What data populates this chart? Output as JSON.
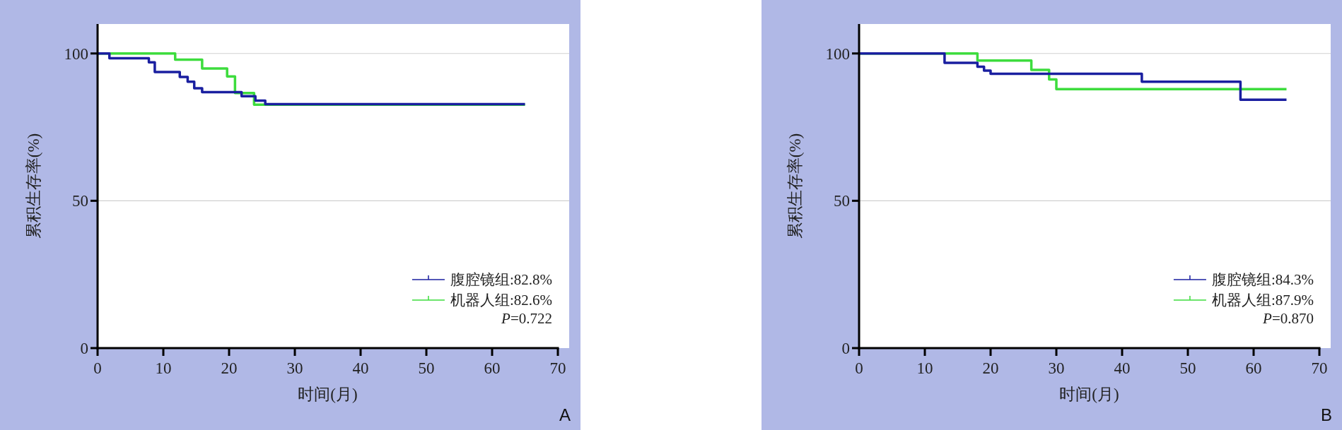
{
  "chart_data": [
    {
      "type": "step",
      "xlabel": "时间(月)",
      "ylabel": "累积生存率(%)",
      "xlim": [
        0,
        70
      ],
      "ylim": [
        0,
        110
      ],
      "xticks": [
        0,
        10,
        20,
        30,
        40,
        50,
        60,
        70
      ],
      "yticks": [
        0,
        50,
        100
      ],
      "grid": "y",
      "legend": "bottom right",
      "series": [
        {
          "name": "腹腔镜组:82.8%",
          "color": "#1a1fa0",
          "x": [
            0,
            1.8,
            7.8,
            8.7,
            12.5,
            13.7,
            14.7,
            15.9,
            21.9,
            24,
            25.5,
            65
          ],
          "values": [
            100,
            98.4,
            97,
            93.7,
            92,
            90.4,
            88.2,
            86.9,
            85.5,
            84,
            82.8,
            82.8
          ]
        },
        {
          "name": "机器人组:82.6%",
          "color": "#3ddc3d",
          "x": [
            0,
            11.8,
            15.9,
            19.7,
            20.9,
            23.8,
            65
          ],
          "values": [
            100,
            97.9,
            94.9,
            92.2,
            86.6,
            82.6,
            82.6
          ]
        }
      ],
      "annotations": [
        "P=0.722",
        "A"
      ]
    },
    {
      "type": "step",
      "xlabel": "时间(月)",
      "ylabel": "累积生存率(%)",
      "xlim": [
        0,
        70
      ],
      "ylim": [
        0,
        110
      ],
      "xticks": [
        0,
        10,
        20,
        30,
        40,
        50,
        60,
        70
      ],
      "yticks": [
        0,
        50,
        100
      ],
      "grid": "y",
      "legend": "bottom right",
      "series": [
        {
          "name": "腹腔镜组:84.3%",
          "color": "#1a1fa0",
          "x": [
            0,
            13,
            18,
            19,
            20,
            43,
            58,
            65
          ],
          "values": [
            100,
            96.8,
            95.5,
            94.2,
            93.1,
            90.4,
            84.3,
            84.3
          ]
        },
        {
          "name": "机器人组:87.9%",
          "color": "#3ddc3d",
          "x": [
            0,
            18,
            26.2,
            28.9,
            30,
            65
          ],
          "values": [
            100,
            97.6,
            94.4,
            91.2,
            87.9,
            87.9
          ]
        }
      ],
      "annotations": [
        "P=0.870",
        "B"
      ]
    }
  ]
}
